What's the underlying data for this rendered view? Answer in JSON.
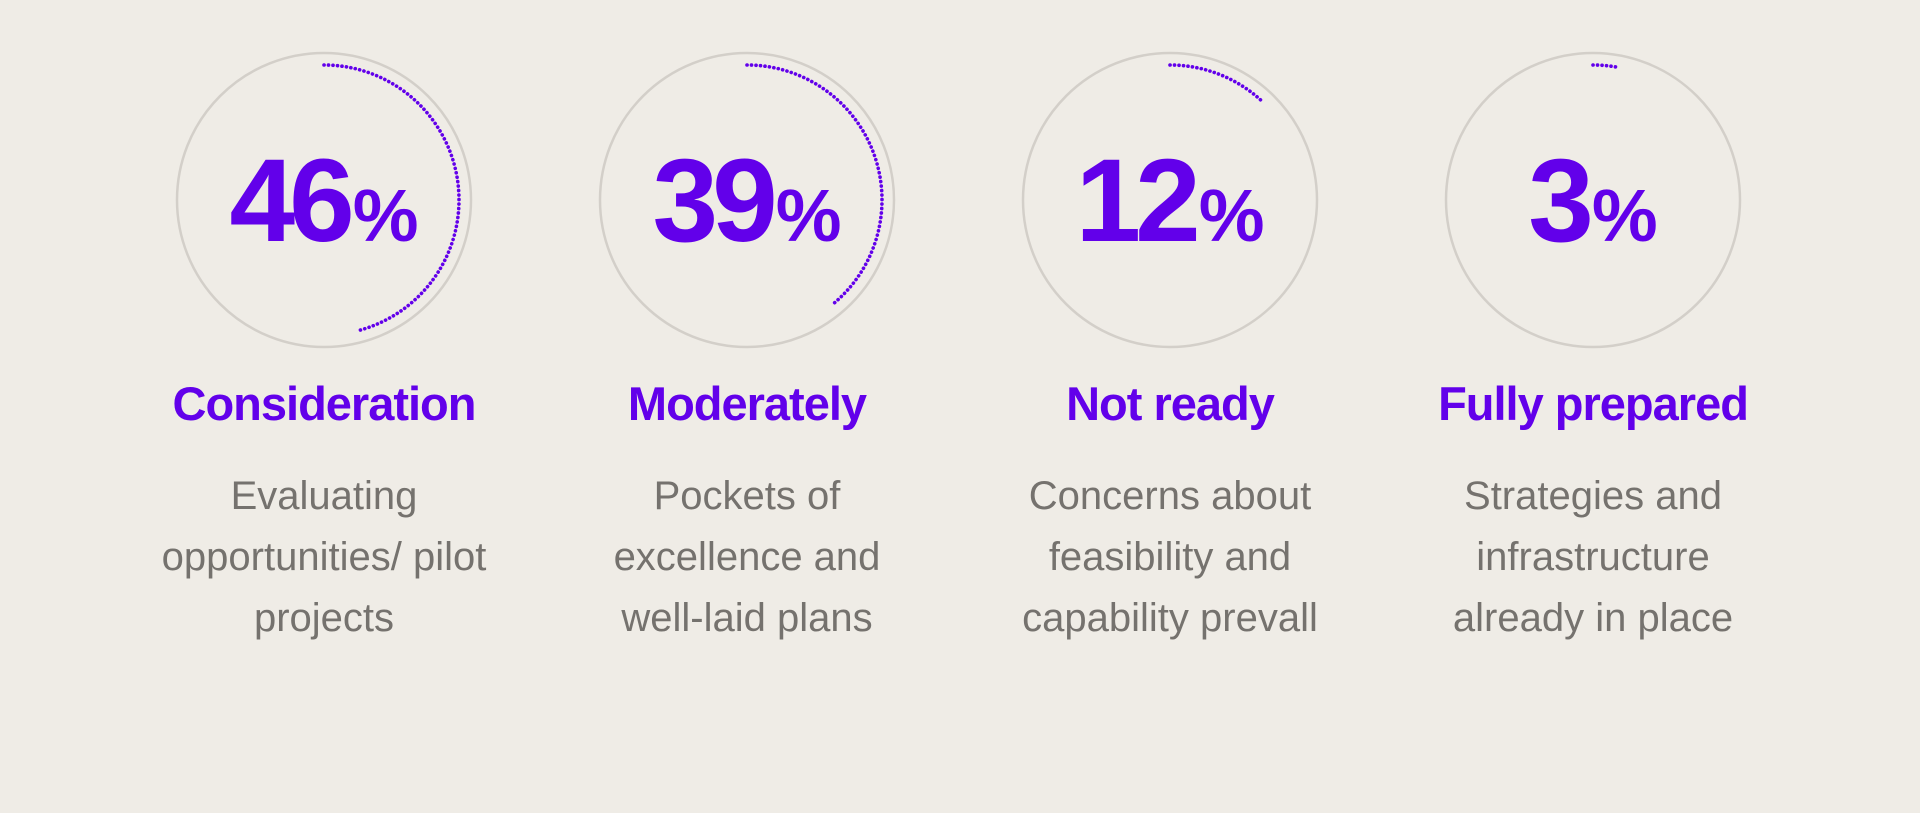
{
  "chart_data": {
    "type": "gauge",
    "title": "",
    "items": [
      {
        "value": 46,
        "display": "46",
        "unit": "%",
        "label": "Consideration",
        "description": "Evaluating opportunities/ pilot projects"
      },
      {
        "value": 39,
        "display": "39",
        "unit": "%",
        "label": "Moderately",
        "description": "Pockets of excellence and well-laid plans"
      },
      {
        "value": 12,
        "display": "12",
        "unit": "%",
        "label": "Not ready",
        "description": "Concerns about feasibility and capability prevall"
      },
      {
        "value": 3,
        "display": "3",
        "unit": "%",
        "label": "Fully prepared",
        "description": "Strategies and infrastructure already in place"
      }
    ]
  },
  "colors": {
    "accent": "#6200ea",
    "ring_track": "#d3cfc9",
    "description_text": "#75726e",
    "background": "#efece6"
  }
}
